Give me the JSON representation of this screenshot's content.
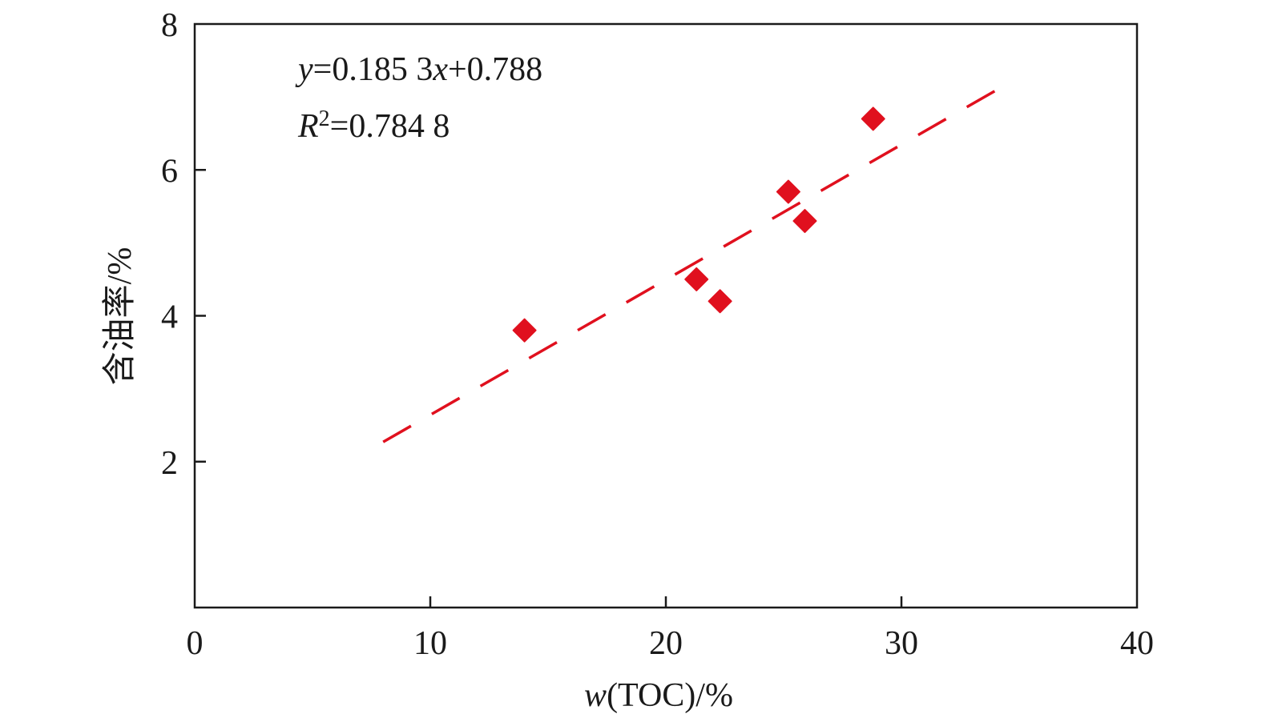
{
  "chart_data": {
    "type": "scatter",
    "title": "",
    "xlabel": {
      "italic": "w",
      "rest": "(TOC)/%"
    },
    "ylabel": "含油率/%",
    "xlim": [
      0,
      40
    ],
    "ylim": [
      0,
      8
    ],
    "x_ticks": [
      0,
      10,
      20,
      30,
      40
    ],
    "y_ticks": [
      2,
      4,
      6,
      8
    ],
    "x_tick_labels": [
      "0",
      "10",
      "20",
      "30",
      "40"
    ],
    "y_tick_labels": [
      "2",
      "4",
      "6",
      "8"
    ],
    "grid": false,
    "legend": "none",
    "marker_color": "#e0101e",
    "trend_color": "#e0101e",
    "points": [
      {
        "x": 14.0,
        "y": 3.8
      },
      {
        "x": 21.3,
        "y": 4.5
      },
      {
        "x": 22.3,
        "y": 4.2
      },
      {
        "x": 25.2,
        "y": 5.7
      },
      {
        "x": 25.9,
        "y": 5.3
      },
      {
        "x": 28.8,
        "y": 6.7
      }
    ],
    "trendline": {
      "type": "linear",
      "slope": 0.1853,
      "intercept": 0.788,
      "x_start": 8,
      "x_end": 34
    },
    "equation": {
      "y_var": "y",
      "eq_text": "=0.185 3",
      "x_var": "x",
      "tail": "+0.788"
    },
    "r_squared": {
      "var": "R",
      "sup": "2",
      "text": "=0.784 8"
    }
  }
}
